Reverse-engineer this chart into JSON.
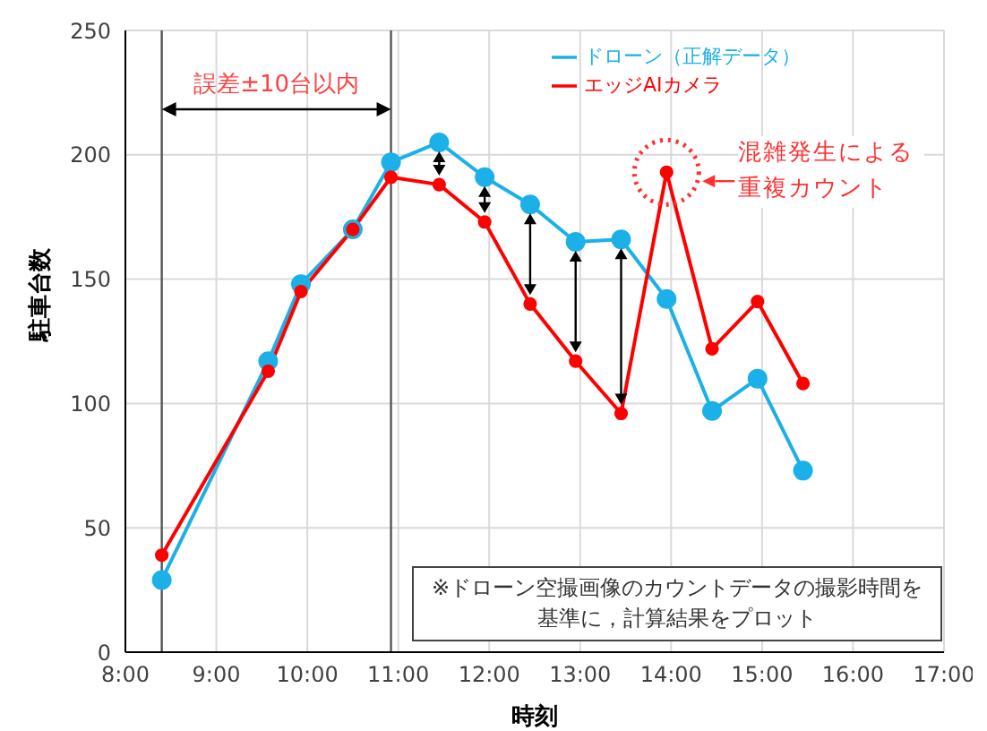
{
  "chart_data": {
    "type": "line",
    "xlabel": "時刻",
    "ylabel": "駐車台数",
    "x": [
      8.4,
      9.57,
      9.93,
      10.5,
      10.92,
      11.45,
      11.95,
      12.45,
      12.95,
      13.45,
      13.95,
      14.45,
      14.95,
      15.45
    ],
    "series": [
      {
        "name": "ドローン（正解データ）",
        "color": "#1cb0e8",
        "values": [
          29,
          117,
          148,
          170,
          197,
          205,
          191,
          180,
          165,
          166,
          142,
          97,
          110,
          73
        ]
      },
      {
        "name": "エッジAIカメラ",
        "color": "#ff0000",
        "values": [
          39,
          113,
          145,
          170,
          191,
          188,
          173,
          140,
          117,
          96,
          193,
          122,
          141,
          108
        ]
      }
    ],
    "xlim": [
      8,
      17
    ],
    "xticks": [
      {
        "value": 8,
        "label": "8:00"
      },
      {
        "value": 9,
        "label": "9:00"
      },
      {
        "value": 10,
        "label": "10:00"
      },
      {
        "value": 11,
        "label": "11:00"
      },
      {
        "value": 12,
        "label": "12:00"
      },
      {
        "value": 13,
        "label": "13:00"
      },
      {
        "value": 14,
        "label": "14:00"
      },
      {
        "value": 15,
        "label": "15:00"
      },
      {
        "value": 16,
        "label": "16:00"
      },
      {
        "value": 17,
        "label": "17:00"
      }
    ],
    "ylim": [
      0,
      250
    ],
    "yticks": [
      0,
      50,
      100,
      150,
      200,
      250
    ],
    "ref_lines": [
      {
        "axis": "x",
        "value": 8.4,
        "color": "#555555"
      },
      {
        "axis": "x",
        "value": 10.92,
        "color": "#555555"
      }
    ],
    "annotations": [
      "混雑発生による重複カウント",
      "誤差±10台以内",
      "※ドローン空撮画像のカウントデータの撮影時間を基準に，計算結果をプロット"
    ],
    "grid": true,
    "legend": "top",
    "marker": "circle",
    "line_style": "solid"
  }
}
